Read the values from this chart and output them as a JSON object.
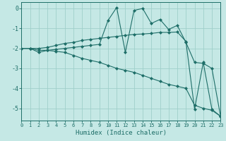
{
  "xlabel": "Humidex (Indice chaleur)",
  "background_color": "#c5e8e5",
  "grid_color": "#9fcfca",
  "line_color": "#1e6e68",
  "xlim": [
    0,
    23
  ],
  "ylim": [
    -5.6,
    0.3
  ],
  "yticks": [
    0,
    -1,
    -2,
    -3,
    -4,
    -5
  ],
  "xticks": [
    0,
    1,
    2,
    3,
    4,
    5,
    6,
    7,
    8,
    9,
    10,
    11,
    12,
    13,
    14,
    15,
    16,
    17,
    18,
    19,
    20,
    21,
    22,
    23
  ],
  "series": [
    {
      "x": [
        0,
        1,
        2,
        3,
        4,
        5,
        6,
        7,
        8,
        9,
        10,
        11,
        12,
        13,
        14,
        15,
        16,
        17,
        18,
        19,
        20,
        21,
        22,
        23
      ],
      "y": [
        -2.0,
        -2.0,
        -2.1,
        -2.1,
        -2.15,
        -2.2,
        -2.35,
        -2.5,
        -2.6,
        -2.7,
        -2.85,
        -3.0,
        -3.1,
        -3.2,
        -3.35,
        -3.5,
        -3.65,
        -3.8,
        -3.9,
        -4.0,
        -4.85,
        -5.0,
        -5.1,
        -5.4
      ]
    },
    {
      "x": [
        0,
        1,
        2,
        3,
        4,
        5,
        6,
        7,
        8,
        9,
        10,
        11,
        12,
        13,
        14,
        15,
        16,
        17,
        18,
        19,
        20,
        21,
        22,
        23
      ],
      "y": [
        -2.0,
        -2.0,
        -2.2,
        -2.1,
        -2.05,
        -2.0,
        -1.95,
        -1.9,
        -1.85,
        -1.8,
        -0.6,
        0.05,
        -2.2,
        -0.1,
        0.0,
        -0.75,
        -0.55,
        -1.05,
        -0.85,
        -1.7,
        -2.7,
        -2.75,
        -3.0,
        -5.4
      ]
    },
    {
      "x": [
        0,
        1,
        2,
        3,
        4,
        5,
        6,
        7,
        8,
        9,
        10,
        11,
        12,
        13,
        14,
        15,
        16,
        17,
        18,
        19,
        20,
        21,
        22,
        23
      ],
      "y": [
        -2.0,
        -2.0,
        -2.0,
        -1.95,
        -1.85,
        -1.75,
        -1.7,
        -1.6,
        -1.55,
        -1.5,
        -1.45,
        -1.4,
        -1.35,
        -1.3,
        -1.28,
        -1.25,
        -1.2,
        -1.2,
        -1.18,
        -1.65,
        -5.05,
        -2.7,
        -5.05,
        -5.4
      ]
    }
  ]
}
